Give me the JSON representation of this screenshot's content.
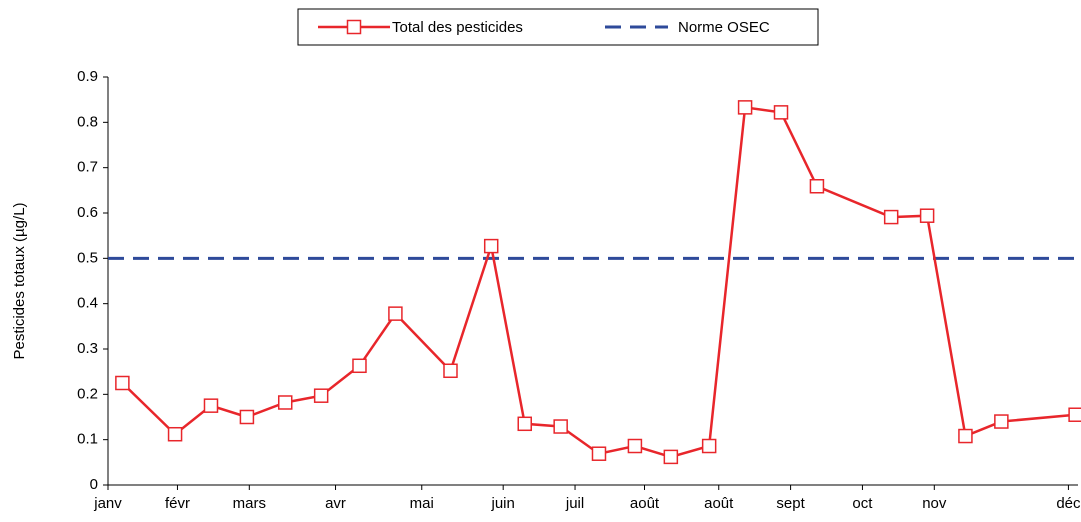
{
  "chart_data": {
    "type": "line",
    "y_label": "Pesticides totaux  (µg/L)",
    "x": [
      6,
      28,
      43,
      58,
      74,
      89,
      105,
      120,
      143,
      160,
      174,
      189,
      205,
      220,
      235,
      251,
      266,
      281,
      296,
      327,
      342,
      358,
      373,
      404
    ],
    "series": [
      {
        "name": "Total des pesticides",
        "color": "#e8262b",
        "values": [
          0.225,
          0.112,
          0.175,
          0.15,
          0.182,
          0.197,
          0.263,
          0.378,
          0.252,
          0.527,
          0.135,
          0.129,
          0.069,
          0.086,
          0.062,
          0.086,
          0.833,
          0.822,
          0.659,
          0.591,
          0.594,
          0.108,
          0.14,
          0.155
        ]
      }
    ],
    "reference": {
      "name": "Norme OSEC",
      "value": 0.5,
      "color": "#2e4a9a"
    },
    "xlim": [
      0,
      405
    ],
    "xticks": [
      {
        "value": 0,
        "label": "janv"
      },
      {
        "value": 29,
        "label": "févr"
      },
      {
        "value": 59,
        "label": "mars"
      },
      {
        "value": 95,
        "label": "avr"
      },
      {
        "value": 131,
        "label": "mai"
      },
      {
        "value": 165,
        "label": "juin"
      },
      {
        "value": 195,
        "label": "juil"
      },
      {
        "value": 224,
        "label": "août"
      },
      {
        "value": 255,
        "label": "août"
      },
      {
        "value": 285,
        "label": "sept"
      },
      {
        "value": 315,
        "label": "oct"
      },
      {
        "value": 345,
        "label": "nov"
      },
      {
        "value": 401,
        "label": "déc"
      }
    ],
    "ylim": [
      0,
      0.9
    ],
    "yticks": [
      0,
      0.1,
      0.2,
      0.3,
      0.4,
      0.5,
      0.6,
      0.7,
      0.8,
      0.9
    ],
    "grid": false
  }
}
